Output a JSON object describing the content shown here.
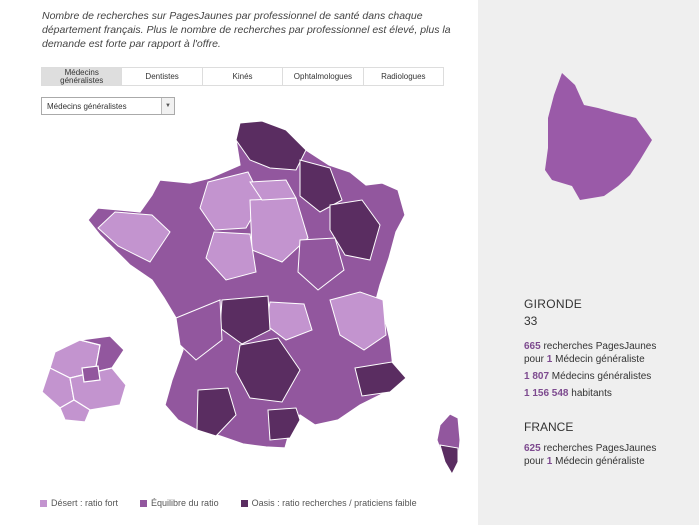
{
  "intro_text": "Nombre de recherches sur PagesJaunes par professionnel de santé dans chaque département français. Plus le nombre de recherches par professionnel est élevé, plus la demande est forte par rapport à l'offre.",
  "tabs": [
    {
      "label": "Médecins généralistes",
      "active": true
    },
    {
      "label": "Dentistes",
      "active": false
    },
    {
      "label": "Kinés",
      "active": false
    },
    {
      "label": "Ophtalmologues",
      "active": false
    },
    {
      "label": "Radiologues",
      "active": false
    }
  ],
  "select": {
    "value": "Médecins généralistes"
  },
  "legend": [
    {
      "label": "Désert : ratio fort",
      "color": "#c394cf"
    },
    {
      "label": "Équilibre du ratio",
      "color": "#92579e"
    },
    {
      "label": "Oasis : ratio recherches / praticiens faible",
      "color": "#5a2d61"
    }
  ],
  "colors": {
    "light": "#c394cf",
    "medium": "#92579e",
    "dark": "#5a2d61",
    "selected": "#9a5aa8",
    "accent": "#7d4a8f"
  },
  "detail": {
    "name": "GIRONDE",
    "number": "33",
    "searches_value": "665",
    "searches_text_a": " recherches PagesJaunes",
    "searches_text_b_pre": "pour ",
    "searches_per": "1",
    "searches_text_b_post": " Médecin généraliste",
    "count_value": "1 807",
    "count_text": " Médecins généralistes",
    "population_value": "1 156 548",
    "population_text": " habitants"
  },
  "france": {
    "name": "FRANCE",
    "searches_value": "625",
    "searches_text_a": " recherches PagesJaunes",
    "searches_text_b_pre": "pour ",
    "searches_per": "1",
    "searches_text_b_post": " Médecin généraliste"
  }
}
